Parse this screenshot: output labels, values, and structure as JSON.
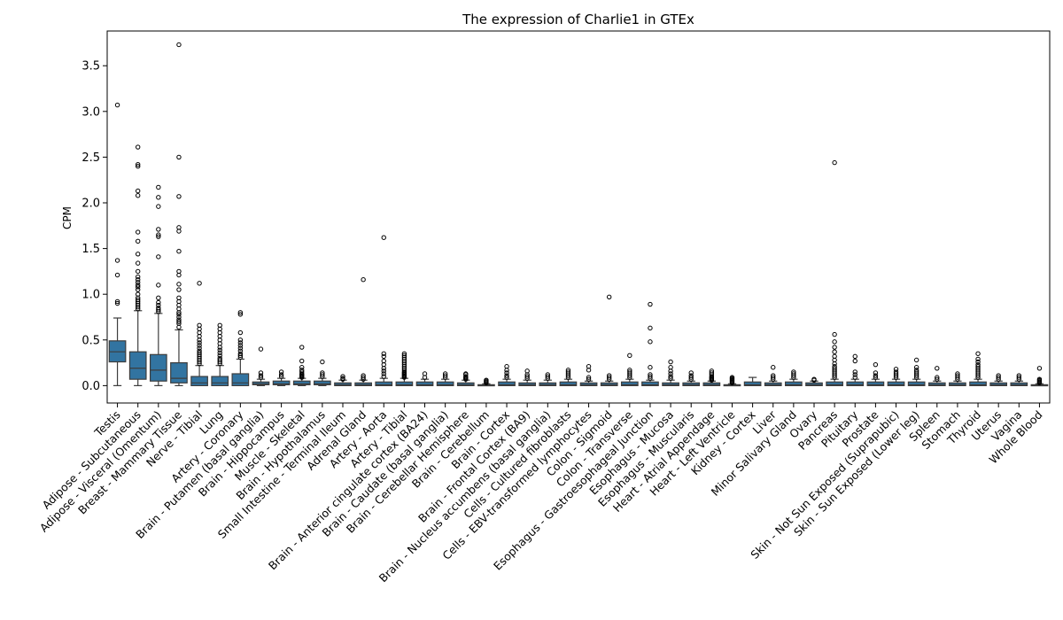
{
  "chart_data": {
    "type": "box",
    "title": "The expression of Charlie1 in GTEx",
    "xlabel": "",
    "ylabel": "CPM",
    "ylim": [
      -0.19,
      3.88
    ],
    "yticks": [
      "0.0",
      "0.5",
      "1.0",
      "1.5",
      "2.0",
      "2.5",
      "3.0",
      "3.5"
    ],
    "grid": false,
    "box_color": "#3274a1",
    "categories": [
      "Testis",
      "Adipose - Subcutaneous",
      "Adipose - Visceral (Omentum)",
      "Breast - Mammary Tissue",
      "Nerve - Tibial",
      "Lung",
      "Artery - Coronary",
      "Brain - Putamen (basal ganglia)",
      "Brain - Hippocampus",
      "Muscle - Skeletal",
      "Brain - Hypothalamus",
      "Small Intestine - Terminal Ileum",
      "Adrenal Gland",
      "Artery - Aorta",
      "Artery - Tibial",
      "Brain - Anterior cingulate cortex (BA24)",
      "Brain - Caudate (basal ganglia)",
      "Brain - Cerebellar Hemisphere",
      "Brain - Cerebellum",
      "Brain - Cortex",
      "Brain - Frontal Cortex (BA9)",
      "Brain - Nucleus accumbens (basal ganglia)",
      "Cells - Cultured fibroblasts",
      "Cells - EBV-transformed lymphocytes",
      "Colon - Sigmoid",
      "Colon - Transverse",
      "Esophagus - Gastroesophageal Junction",
      "Esophagus - Mucosa",
      "Esophagus - Muscularis",
      "Heart - Atrial Appendage",
      "Heart - Left Ventricle",
      "Kidney - Cortex",
      "Liver",
      "Minor Salivary Gland",
      "Ovary",
      "Pancreas",
      "Pituitary",
      "Prostate",
      "Skin - Not Sun Exposed (Suprapubic)",
      "Skin - Sun Exposed (Lower leg)",
      "Spleen",
      "Stomach",
      "Thyroid",
      "Uterus",
      "Vagina",
      "Whole Blood"
    ],
    "boxes": [
      {
        "whislo": 0.0,
        "q1": 0.26,
        "med": 0.37,
        "q3": 0.49,
        "whishi": 0.74,
        "fliers": [
          0.9,
          0.92,
          1.21,
          1.37,
          3.07
        ]
      },
      {
        "whislo": 0.0,
        "q1": 0.07,
        "med": 0.19,
        "q3": 0.37,
        "whishi": 0.82,
        "fliers": [
          0.84,
          0.86,
          0.88,
          0.9,
          0.92,
          0.94,
          0.96,
          1.0,
          1.05,
          1.08,
          1.1,
          1.13,
          1.16,
          1.19,
          1.25,
          1.34,
          1.44,
          1.58,
          1.68,
          2.08,
          2.13,
          2.4,
          2.42,
          2.61
        ]
      },
      {
        "whislo": 0.0,
        "q1": 0.05,
        "med": 0.17,
        "q3": 0.34,
        "whishi": 0.79,
        "fliers": [
          0.81,
          0.83,
          0.85,
          0.88,
          0.91,
          0.96,
          1.1,
          1.41,
          1.63,
          1.65,
          1.71,
          1.96,
          2.06,
          2.17
        ]
      },
      {
        "whislo": 0.0,
        "q1": 0.03,
        "med": 0.08,
        "q3": 0.25,
        "whishi": 0.61,
        "fliers": [
          0.64,
          0.68,
          0.7,
          0.72,
          0.75,
          0.78,
          0.8,
          0.84,
          0.88,
          0.92,
          0.96,
          1.05,
          1.11,
          1.21,
          1.25,
          1.47,
          1.69,
          1.73,
          2.07,
          2.5,
          3.73
        ]
      },
      {
        "whislo": 0.0,
        "q1": 0.0,
        "med": 0.03,
        "q3": 0.1,
        "whishi": 0.22,
        "fliers": [
          0.24,
          0.26,
          0.28,
          0.3,
          0.32,
          0.34,
          0.36,
          0.38,
          0.41,
          0.44,
          0.47,
          0.5,
          0.54,
          0.58,
          0.62,
          0.66,
          1.12
        ]
      },
      {
        "whislo": 0.0,
        "q1": 0.0,
        "med": 0.03,
        "q3": 0.1,
        "whishi": 0.22,
        "fliers": [
          0.24,
          0.26,
          0.28,
          0.3,
          0.33,
          0.36,
          0.39,
          0.42,
          0.46,
          0.5,
          0.54,
          0.58,
          0.62,
          0.66
        ]
      },
      {
        "whislo": 0.0,
        "q1": 0.0,
        "med": 0.03,
        "q3": 0.13,
        "whishi": 0.29,
        "fliers": [
          0.31,
          0.33,
          0.35,
          0.38,
          0.41,
          0.44,
          0.47,
          0.5,
          0.58,
          0.78,
          0.8
        ]
      },
      {
        "whislo": 0.0,
        "q1": 0.01,
        "med": 0.02,
        "q3": 0.04,
        "whishi": 0.07,
        "fliers": [
          0.09,
          0.11,
          0.14,
          0.4
        ]
      },
      {
        "whislo": 0.0,
        "q1": 0.01,
        "med": 0.02,
        "q3": 0.05,
        "whishi": 0.08,
        "fliers": [
          0.1,
          0.12,
          0.15
        ]
      },
      {
        "whislo": 0.0,
        "q1": 0.01,
        "med": 0.02,
        "q3": 0.05,
        "whishi": 0.08,
        "fliers": [
          0.09,
          0.1,
          0.11,
          0.12,
          0.13,
          0.15,
          0.17,
          0.2,
          0.27,
          0.42
        ]
      },
      {
        "whislo": 0.0,
        "q1": 0.01,
        "med": 0.02,
        "q3": 0.05,
        "whishi": 0.08,
        "fliers": [
          0.1,
          0.12,
          0.14,
          0.26
        ]
      },
      {
        "whislo": 0.0,
        "q1": 0.0,
        "med": 0.01,
        "q3": 0.03,
        "whishi": 0.06,
        "fliers": [
          0.07,
          0.08,
          0.1
        ]
      },
      {
        "whislo": 0.0,
        "q1": 0.0,
        "med": 0.01,
        "q3": 0.03,
        "whishi": 0.06,
        "fliers": [
          0.07,
          0.09,
          0.11,
          1.16
        ]
      },
      {
        "whislo": 0.0,
        "q1": 0.0,
        "med": 0.01,
        "q3": 0.04,
        "whishi": 0.08,
        "fliers": [
          0.1,
          0.13,
          0.16,
          0.19,
          0.23,
          0.27,
          0.32,
          0.35,
          1.62
        ]
      },
      {
        "whislo": 0.0,
        "q1": 0.0,
        "med": 0.01,
        "q3": 0.04,
        "whishi": 0.08,
        "fliers": [
          0.09,
          0.1,
          0.11,
          0.12,
          0.13,
          0.14,
          0.15,
          0.17,
          0.19,
          0.21,
          0.23,
          0.25,
          0.27,
          0.29,
          0.31,
          0.33,
          0.35
        ]
      },
      {
        "whislo": 0.0,
        "q1": 0.0,
        "med": 0.01,
        "q3": 0.04,
        "whishi": 0.07,
        "fliers": [
          0.09,
          0.13
        ]
      },
      {
        "whislo": 0.0,
        "q1": 0.0,
        "med": 0.01,
        "q3": 0.04,
        "whishi": 0.07,
        "fliers": [
          0.09,
          0.11,
          0.13
        ]
      },
      {
        "whislo": 0.0,
        "q1": 0.0,
        "med": 0.01,
        "q3": 0.03,
        "whishi": 0.06,
        "fliers": [
          0.07,
          0.08,
          0.09,
          0.1,
          0.12,
          0.13
        ]
      },
      {
        "whislo": 0.0,
        "q1": 0.0,
        "med": 0.0,
        "q3": 0.01,
        "whishi": 0.02,
        "fliers": [
          0.03,
          0.04,
          0.05,
          0.06
        ]
      },
      {
        "whislo": 0.0,
        "q1": 0.0,
        "med": 0.01,
        "q3": 0.04,
        "whishi": 0.07,
        "fliers": [
          0.09,
          0.11,
          0.14,
          0.17,
          0.21
        ]
      },
      {
        "whislo": 0.0,
        "q1": 0.0,
        "med": 0.01,
        "q3": 0.03,
        "whishi": 0.06,
        "fliers": [
          0.08,
          0.1,
          0.12,
          0.16
        ]
      },
      {
        "whislo": 0.0,
        "q1": 0.0,
        "med": 0.01,
        "q3": 0.03,
        "whishi": 0.06,
        "fliers": [
          0.08,
          0.1,
          0.12
        ]
      },
      {
        "whislo": 0.0,
        "q1": 0.0,
        "med": 0.01,
        "q3": 0.04,
        "whishi": 0.07,
        "fliers": [
          0.09,
          0.11,
          0.13,
          0.15,
          0.17
        ]
      },
      {
        "whislo": 0.0,
        "q1": 0.0,
        "med": 0.01,
        "q3": 0.03,
        "whishi": 0.05,
        "fliers": [
          0.07,
          0.09,
          0.17,
          0.21
        ]
      },
      {
        "whislo": 0.0,
        "q1": 0.0,
        "med": 0.01,
        "q3": 0.03,
        "whishi": 0.05,
        "fliers": [
          0.07,
          0.09,
          0.11,
          0.97
        ]
      },
      {
        "whislo": 0.0,
        "q1": 0.0,
        "med": 0.01,
        "q3": 0.04,
        "whishi": 0.07,
        "fliers": [
          0.09,
          0.11,
          0.13,
          0.15,
          0.17,
          0.33
        ]
      },
      {
        "whislo": 0.0,
        "q1": 0.0,
        "med": 0.01,
        "q3": 0.04,
        "whishi": 0.06,
        "fliers": [
          0.08,
          0.1,
          0.12,
          0.2,
          0.48,
          0.63,
          0.89
        ]
      },
      {
        "whislo": 0.0,
        "q1": 0.0,
        "med": 0.01,
        "q3": 0.03,
        "whishi": 0.06,
        "fliers": [
          0.08,
          0.1,
          0.13,
          0.16,
          0.2,
          0.26
        ]
      },
      {
        "whislo": 0.0,
        "q1": 0.0,
        "med": 0.01,
        "q3": 0.03,
        "whishi": 0.05,
        "fliers": [
          0.07,
          0.09,
          0.11,
          0.14
        ]
      },
      {
        "whislo": 0.0,
        "q1": 0.0,
        "med": 0.01,
        "q3": 0.03,
        "whishi": 0.05,
        "fliers": [
          0.06,
          0.07,
          0.08,
          0.09,
          0.1,
          0.12,
          0.14,
          0.16
        ]
      },
      {
        "whislo": 0.0,
        "q1": 0.0,
        "med": 0.0,
        "q3": 0.01,
        "whishi": 0.02,
        "fliers": [
          0.03,
          0.04,
          0.05,
          0.06,
          0.07,
          0.08,
          0.09
        ]
      },
      {
        "whislo": 0.0,
        "q1": 0.0,
        "med": 0.01,
        "q3": 0.04,
        "whishi": 0.09,
        "fliers": []
      },
      {
        "whislo": 0.0,
        "q1": 0.0,
        "med": 0.01,
        "q3": 0.03,
        "whishi": 0.05,
        "fliers": [
          0.07,
          0.09,
          0.11,
          0.2
        ]
      },
      {
        "whislo": 0.0,
        "q1": 0.0,
        "med": 0.01,
        "q3": 0.04,
        "whishi": 0.07,
        "fliers": [
          0.09,
          0.11,
          0.13,
          0.15
        ]
      },
      {
        "whislo": 0.0,
        "q1": 0.0,
        "med": 0.01,
        "q3": 0.03,
        "whishi": 0.05,
        "fliers": [
          0.06,
          0.07
        ]
      },
      {
        "whislo": 0.0,
        "q1": 0.0,
        "med": 0.01,
        "q3": 0.04,
        "whishi": 0.07,
        "fliers": [
          0.09,
          0.11,
          0.13,
          0.15,
          0.17,
          0.19,
          0.21,
          0.24,
          0.28,
          0.32,
          0.37,
          0.42,
          0.48,
          0.56,
          2.44
        ]
      },
      {
        "whislo": 0.0,
        "q1": 0.0,
        "med": 0.01,
        "q3": 0.04,
        "whishi": 0.07,
        "fliers": [
          0.09,
          0.12,
          0.15,
          0.27,
          0.32
        ]
      },
      {
        "whislo": 0.0,
        "q1": 0.0,
        "med": 0.01,
        "q3": 0.04,
        "whishi": 0.07,
        "fliers": [
          0.09,
          0.11,
          0.14,
          0.23
        ]
      },
      {
        "whislo": 0.0,
        "q1": 0.0,
        "med": 0.01,
        "q3": 0.04,
        "whishi": 0.07,
        "fliers": [
          0.09,
          0.11,
          0.13,
          0.15,
          0.18
        ]
      },
      {
        "whislo": 0.0,
        "q1": 0.0,
        "med": 0.01,
        "q3": 0.04,
        "whishi": 0.07,
        "fliers": [
          0.09,
          0.11,
          0.13,
          0.15,
          0.17,
          0.2,
          0.28
        ]
      },
      {
        "whislo": 0.0,
        "q1": 0.0,
        "med": 0.01,
        "q3": 0.03,
        "whishi": 0.05,
        "fliers": [
          0.07,
          0.09,
          0.19
        ]
      },
      {
        "whislo": 0.0,
        "q1": 0.0,
        "med": 0.01,
        "q3": 0.03,
        "whishi": 0.05,
        "fliers": [
          0.07,
          0.09,
          0.11,
          0.13
        ]
      },
      {
        "whislo": 0.0,
        "q1": 0.0,
        "med": 0.01,
        "q3": 0.04,
        "whishi": 0.07,
        "fliers": [
          0.09,
          0.11,
          0.13,
          0.15,
          0.17,
          0.19,
          0.21,
          0.23,
          0.26,
          0.29,
          0.35
        ]
      },
      {
        "whislo": 0.0,
        "q1": 0.0,
        "med": 0.01,
        "q3": 0.03,
        "whishi": 0.05,
        "fliers": [
          0.07,
          0.09,
          0.11
        ]
      },
      {
        "whislo": 0.0,
        "q1": 0.0,
        "med": 0.01,
        "q3": 0.03,
        "whishi": 0.05,
        "fliers": [
          0.07,
          0.09,
          0.11
        ]
      },
      {
        "whislo": 0.0,
        "q1": 0.0,
        "med": 0.0,
        "q3": 0.01,
        "whishi": 0.02,
        "fliers": [
          0.03,
          0.04,
          0.05,
          0.06,
          0.07,
          0.19
        ]
      }
    ]
  }
}
